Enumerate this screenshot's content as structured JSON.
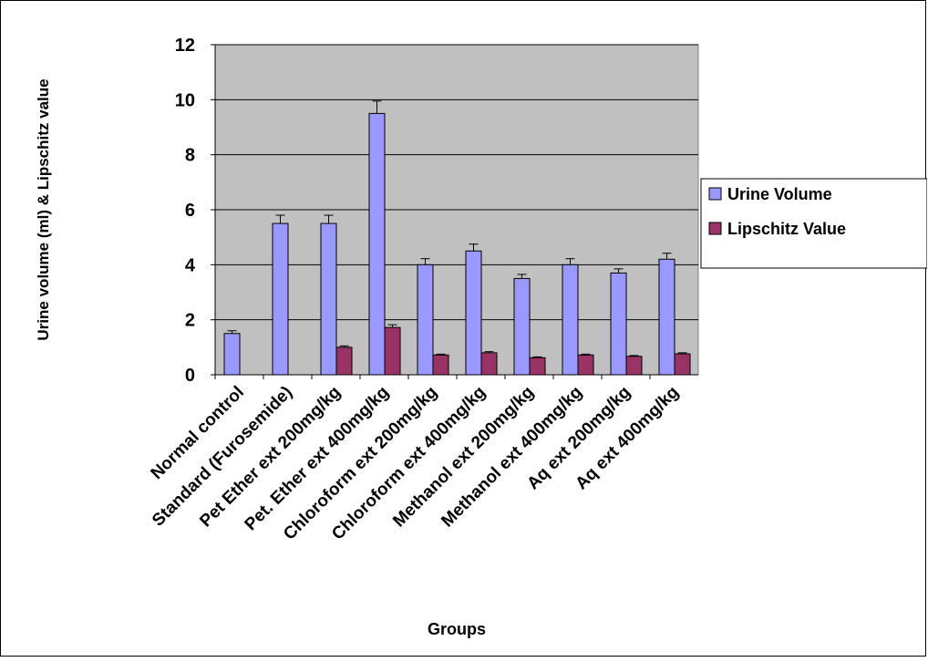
{
  "chart_data": {
    "type": "bar",
    "title": "",
    "xlabel": "Groups",
    "ylabel": "Urine volume (ml) & Lipschitz value",
    "ylim": [
      0,
      12
    ],
    "yticks": [
      0,
      2,
      4,
      6,
      8,
      10,
      12
    ],
    "grid": true,
    "legend_position": "right",
    "categories": [
      "Normal control",
      "Standard (Furosemide)",
      "Pet Ether ext 200mg/kg",
      "Pet. Ether ext 400mg/kg",
      "Chloroform ext 200mg/kg",
      "Chloroform ext 400mg/kg",
      "Methanol ext 200mg/kg",
      "Methanol ext 400mg/kg",
      "Aq ext 200mg/kg",
      "Aq ext 400mg/kg"
    ],
    "series": [
      {
        "name": "Urine Volume",
        "color": "#9999ff",
        "values": [
          1.5,
          5.5,
          5.5,
          9.5,
          4.0,
          4.5,
          3.5,
          4.0,
          3.7,
          4.2
        ],
        "errors": [
          0.1,
          0.3,
          0.3,
          0.45,
          0.22,
          0.25,
          0.15,
          0.22,
          0.15,
          0.22
        ]
      },
      {
        "name": "Lipschitz Value",
        "color": "#993366",
        "values": [
          null,
          null,
          1.0,
          1.72,
          0.72,
          0.8,
          0.62,
          0.72,
          0.67,
          0.76
        ],
        "errors": [
          null,
          null,
          0.05,
          0.1,
          0.03,
          0.04,
          0.03,
          0.03,
          0.03,
          0.04
        ]
      }
    ]
  }
}
